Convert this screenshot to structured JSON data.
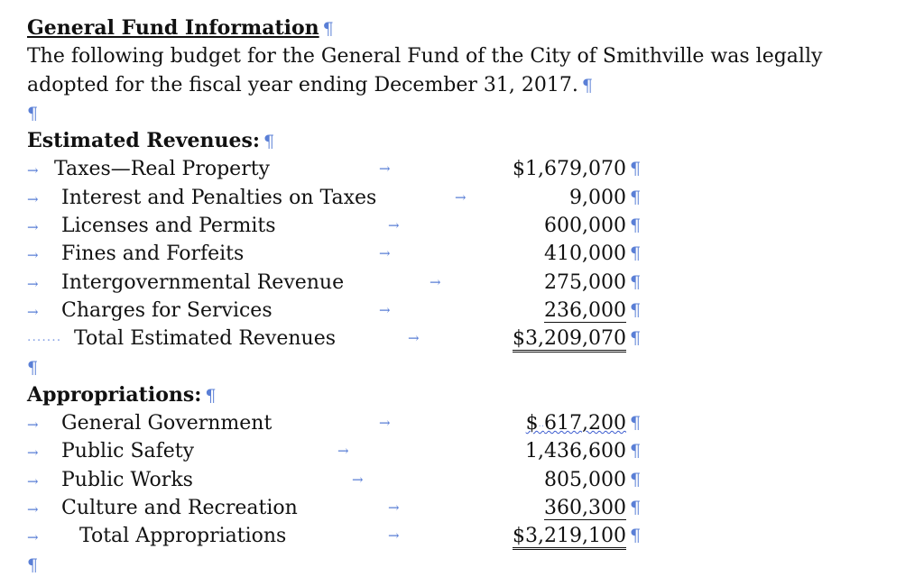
{
  "title": "General Fund Information",
  "intro_line1": "The following budget for the General Fund of the City of Smithville was legally",
  "intro_line2": "adopted for the fiscal year ending December 31, 2017.",
  "revenues": {
    "heading": "Estimated Revenues:",
    "items": [
      {
        "label": "Taxes—Real Property",
        "amount": "$1,679,070"
      },
      {
        "label": "Interest and Penalties on Taxes",
        "amount": "9,000"
      },
      {
        "label": "Licenses and Permits",
        "amount": "600,000"
      },
      {
        "label": "Fines and Forfeits",
        "amount": "410,000"
      },
      {
        "label": "Intergovernmental Revenue",
        "amount": "275,000"
      },
      {
        "label": "Charges for Services",
        "amount": "236,000"
      }
    ],
    "total_label": "Total Estimated Revenues",
    "total_amount": "$3,209,070"
  },
  "appropriations": {
    "heading": "Appropriations:",
    "items": [
      {
        "label": "General Government",
        "amount_symbol": "$",
        "amount": "617,200"
      },
      {
        "label": "Public Safety",
        "amount": "1,436,600"
      },
      {
        "label": "Public Works",
        "amount": "805,000"
      },
      {
        "label": "Culture and Recreation",
        "amount": "360,300"
      }
    ],
    "total_label": "Total Appropriations",
    "total_amount": "$3,219,100"
  },
  "marks": {
    "pilcrow": "¶",
    "tab": "→",
    "space_dots": "·······"
  }
}
